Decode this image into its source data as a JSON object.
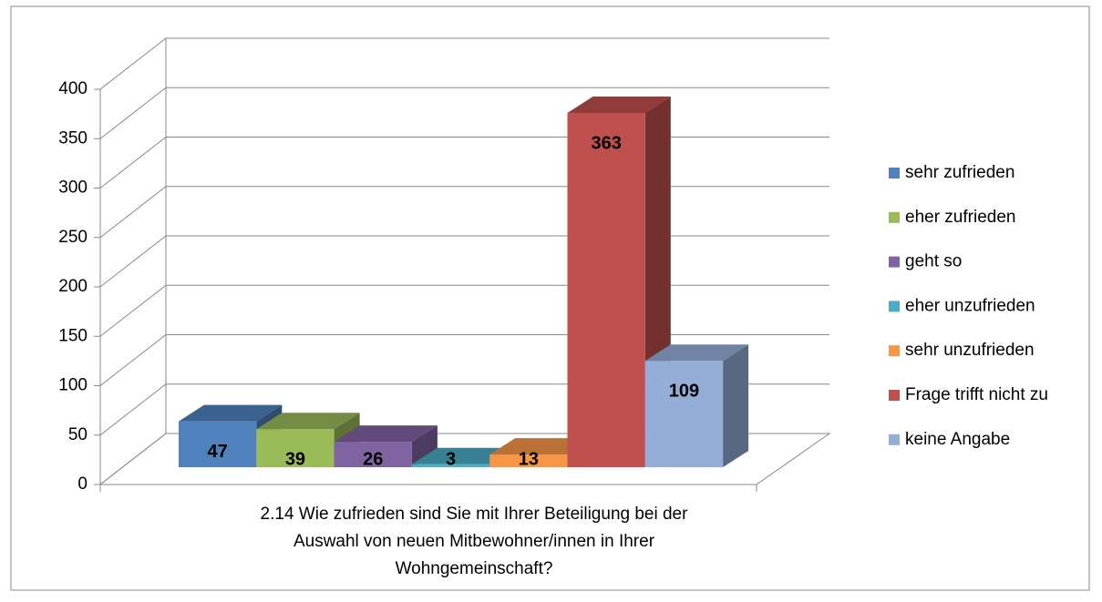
{
  "chart_data": {
    "type": "bar3d",
    "categories": [
      "2.14 Wie zufrieden sind Sie mit Ihrer Beteiligung bei der Auswahl von neuen Mitbewohner/innen in Ihrer Wohngemeinschaft?"
    ],
    "series": [
      {
        "name": "sehr zufrieden",
        "color": "#4F81BD",
        "values": [
          47
        ]
      },
      {
        "name": "eher zufrieden",
        "color": "#9BBB59",
        "values": [
          39
        ]
      },
      {
        "name": "geht so",
        "color": "#8064A2",
        "values": [
          26
        ]
      },
      {
        "name": "eher unzufrieden",
        "color": "#4BACC6",
        "values": [
          3
        ]
      },
      {
        "name": "sehr unzufrieden",
        "color": "#F79646",
        "values": [
          13
        ]
      },
      {
        "name": "Frage trifft nicht zu",
        "color": "#C0504D",
        "values": [
          363
        ]
      },
      {
        "name": "keine Angabe",
        "color": "#95AED8",
        "values": [
          109
        ]
      }
    ],
    "ylim": [
      0,
      400
    ],
    "yticks": [
      0,
      50,
      100,
      150,
      200,
      250,
      300,
      350,
      400
    ],
    "grid": true,
    "legend": "right"
  }
}
